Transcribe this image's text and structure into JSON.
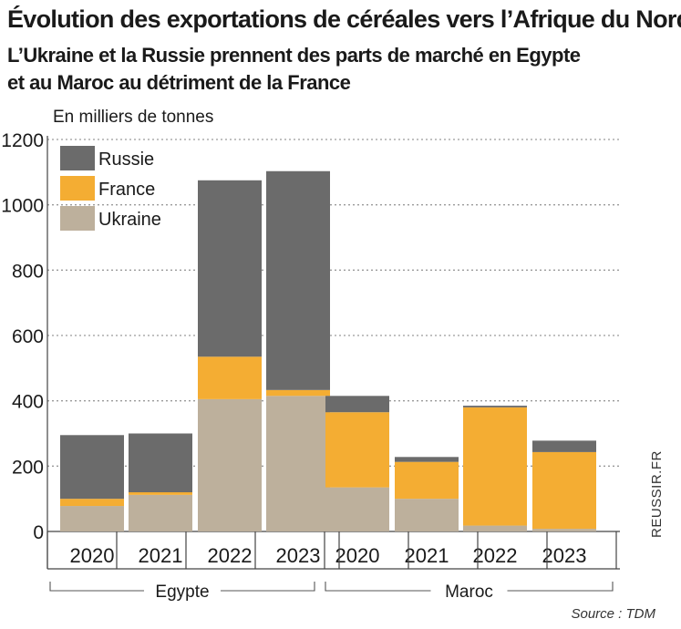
{
  "title": "Évolution des exportations de céréales vers l’Afrique du Nord",
  "subtitle_line1": "L’Ukraine et la Russie prennent des parts de marché en Egypte",
  "subtitle_line2": "et au Maroc au détriment de la France",
  "unit_label": "En milliers de tonnes",
  "source": "Source : TDM",
  "site": "REUSSIR.FR",
  "colors": {
    "Russie": "#6b6b6b",
    "France": "#f4ad33",
    "Ukraine": "#bdb09c"
  },
  "chart_data": {
    "type": "bar",
    "stacked": true,
    "ylim": [
      0,
      1200
    ],
    "yticks": [
      0,
      200,
      400,
      600,
      800,
      1000,
      1200
    ],
    "grid": true,
    "legend_position": "top-left",
    "groups": [
      {
        "name": "Egypte",
        "categories": [
          "2020",
          "2021",
          "2022",
          "2023"
        ]
      },
      {
        "name": "Maroc",
        "categories": [
          "2020",
          "2021",
          "2022",
          "2023"
        ]
      }
    ],
    "series": [
      {
        "name": "Ukraine",
        "values": [
          78,
          112,
          405,
          415,
          135,
          100,
          18,
          8
        ]
      },
      {
        "name": "France",
        "values": [
          22,
          8,
          130,
          18,
          230,
          113,
          362,
          235
        ]
      },
      {
        "name": "Russie",
        "values": [
          195,
          180,
          540,
          670,
          50,
          15,
          5,
          35
        ]
      }
    ],
    "legend_order": [
      "Russie",
      "France",
      "Ukraine"
    ]
  }
}
